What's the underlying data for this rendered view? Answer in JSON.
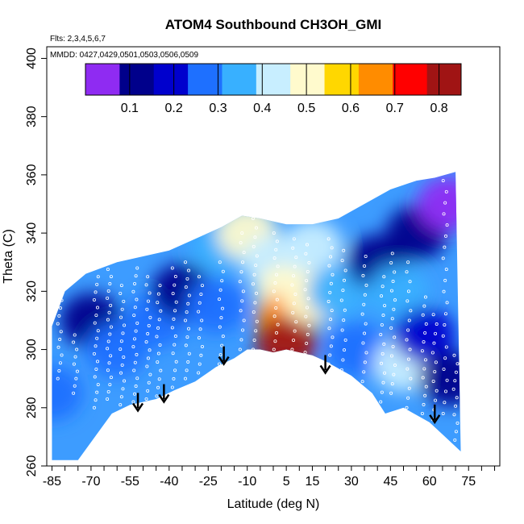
{
  "chart_data": {
    "type": "heatmap",
    "title": "ATOM4 Southbound CH3OH_GMI",
    "annotations": {
      "flights": "Flts: 2,3,4,5,6,7",
      "dates": "MMDD: 0427,0429,0501,0503,0506,0509"
    },
    "xlabel": "Latitude (deg N)",
    "ylabel": "Theta (C)",
    "xlim": [
      -87,
      87
    ],
    "ylim": [
      260,
      404
    ],
    "x_ticks": [
      -85,
      -70,
      -55,
      -40,
      -25,
      -10,
      5,
      15,
      30,
      45,
      60,
      75
    ],
    "y_ticks": [
      260,
      280,
      300,
      320,
      340,
      360,
      380,
      400
    ],
    "colorbar": {
      "range": [
        0,
        0.85
      ],
      "ticks": [
        0.1,
        0.2,
        0.3,
        0.4,
        0.5,
        0.6,
        0.7,
        0.8
      ],
      "tick_labels": [
        "0.1",
        "0.2",
        "0.3",
        "0.4",
        "0.5",
        "0.6",
        "0.7",
        "0.8"
      ],
      "colors": [
        "#8f2bf2",
        "#00008b",
        "#0000cd",
        "#1e70ff",
        "#38b0ff",
        "#c8eeff",
        "#fffacd",
        "#ffd700",
        "#ff8c00",
        "#ff0000",
        "#a01414"
      ]
    },
    "surface_lower_bound": {
      "lat": [
        -75,
        -62,
        -55,
        -45,
        -38,
        -30,
        -22,
        -15,
        -10,
        -5,
        0,
        5,
        10,
        15,
        20,
        30,
        38,
        43,
        50,
        56,
        60,
        66,
        72
      ],
      "theta": [
        262,
        278,
        281,
        283,
        286,
        289,
        294,
        297,
        300,
        300,
        299,
        300,
        299,
        298,
        296,
        291,
        285,
        278,
        280,
        277,
        275,
        270,
        265
      ]
    },
    "domain_upper_bound": {
      "lat": [
        -85,
        -80,
        -72,
        -60,
        -50,
        -40,
        -30,
        -20,
        -12,
        -5,
        5,
        15,
        25,
        35,
        45,
        55,
        62,
        70
      ],
      "theta": [
        308,
        320,
        326,
        330,
        332,
        334,
        338,
        342,
        346,
        345,
        343,
        343,
        345,
        350,
        355,
        358,
        359,
        361
      ]
    },
    "field_regions": [
      {
        "lat": -85,
        "theta": 285,
        "value": 0.28
      },
      {
        "lat": -70,
        "theta": 310,
        "value": 0.12
      },
      {
        "lat": -60,
        "theta": 300,
        "value": 0.28
      },
      {
        "lat": -45,
        "theta": 310,
        "value": 0.27
      },
      {
        "lat": -35,
        "theta": 320,
        "value": 0.12
      },
      {
        "lat": -22,
        "theta": 315,
        "value": 0.25
      },
      {
        "lat": -20,
        "theta": 335,
        "value": 0.36
      },
      {
        "lat": -10,
        "theta": 340,
        "value": 0.52
      },
      {
        "lat": 0,
        "theta": 330,
        "value": 0.42
      },
      {
        "lat": 5,
        "theta": 320,
        "value": 0.48
      },
      {
        "lat": 15,
        "theta": 335,
        "value": 0.45
      },
      {
        "lat": 5,
        "theta": 310,
        "value": 0.62
      },
      {
        "lat": 5,
        "theta": 302,
        "value": 0.78
      },
      {
        "lat": 15,
        "theta": 318,
        "value": 0.52
      },
      {
        "lat": 25,
        "theta": 320,
        "value": 0.32
      },
      {
        "lat": 32,
        "theta": 300,
        "value": 0.28
      },
      {
        "lat": 40,
        "theta": 330,
        "value": 0.13
      },
      {
        "lat": 48,
        "theta": 320,
        "value": 0.33
      },
      {
        "lat": 50,
        "theta": 295,
        "value": 0.4
      },
      {
        "lat": 55,
        "theta": 340,
        "value": 0.1
      },
      {
        "lat": 58,
        "theta": 305,
        "value": 0.2
      },
      {
        "lat": 67,
        "theta": 350,
        "value": 0.03
      },
      {
        "lat": 68,
        "theta": 290,
        "value": 0.08
      }
    ],
    "arrows": [
      {
        "lat": -52,
        "theta": 279
      },
      {
        "lat": -42,
        "theta": 282
      },
      {
        "lat": -19,
        "theta": 295
      },
      {
        "lat": 20,
        "theta": 292
      },
      {
        "lat": 62,
        "theta": 275
      }
    ],
    "flight_tracks": [
      {
        "lat": -82,
        "theta": [
          290,
          325
        ],
        "n": 14
      },
      {
        "lat": -76,
        "theta": [
          285,
          305
        ],
        "n": 9
      },
      {
        "lat": -68,
        "theta": [
          280,
          325
        ],
        "n": 18
      },
      {
        "lat": -63,
        "theta": [
          283,
          330
        ],
        "n": 20
      },
      {
        "lat": -58,
        "theta": [
          281,
          322
        ],
        "n": 16
      },
      {
        "lat": -53,
        "theta": [
          282,
          328
        ],
        "n": 18
      },
      {
        "lat": -48,
        "theta": [
          283,
          325
        ],
        "n": 16
      },
      {
        "lat": -44,
        "theta": [
          284,
          322
        ],
        "n": 14
      },
      {
        "lat": -38,
        "theta": [
          287,
          328
        ],
        "n": 15
      },
      {
        "lat": -33,
        "theta": [
          290,
          330
        ],
        "n": 15
      },
      {
        "lat": -28,
        "theta": [
          292,
          325
        ],
        "n": 12
      },
      {
        "lat": -20,
        "theta": [
          295,
          330
        ],
        "n": 12
      },
      {
        "lat": -12,
        "theta": [
          300,
          340
        ],
        "n": 13
      },
      {
        "lat": -7,
        "theta": [
          300,
          345
        ],
        "n": 15
      },
      {
        "lat": 1,
        "theta": [
          300,
          340
        ],
        "n": 15
      },
      {
        "lat": 8,
        "theta": [
          300,
          338
        ],
        "n": 13
      },
      {
        "lat": 13,
        "theta": [
          299,
          336
        ],
        "n": 13
      },
      {
        "lat": 22,
        "theta": [
          295,
          338
        ],
        "n": 15
      },
      {
        "lat": 27,
        "theta": [
          293,
          334
        ],
        "n": 13
      },
      {
        "lat": 35,
        "theta": [
          289,
          332
        ],
        "n": 14
      },
      {
        "lat": 42,
        "theta": [
          282,
          325
        ],
        "n": 14
      },
      {
        "lat": 46,
        "theta": [
          285,
          333
        ],
        "n": 16
      },
      {
        "lat": 52,
        "theta": [
          280,
          330
        ],
        "n": 16
      },
      {
        "lat": 58,
        "theta": [
          278,
          318
        ],
        "n": 14
      },
      {
        "lat": 62,
        "theta": [
          276,
          312
        ],
        "n": 12
      },
      {
        "lat": 66,
        "theta": [
          278,
          358
        ],
        "n": 22
      },
      {
        "lat": 70,
        "theta": [
          266,
          298
        ],
        "n": 12
      }
    ]
  }
}
